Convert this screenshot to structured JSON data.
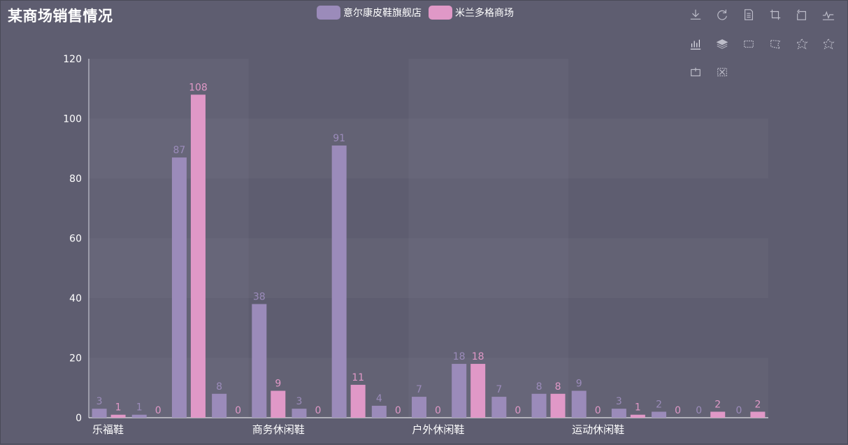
{
  "title": "某商场销售情况",
  "legend": [
    {
      "name": "意尔康皮鞋旗舰店",
      "color": "#9b8bba"
    },
    {
      "name": "米兰多格商场",
      "color": "#e098c7"
    }
  ],
  "toolbox": [
    "save-as-image-icon",
    "restore-icon",
    "data-view-icon",
    "zoom-icon",
    "zoom-back-icon",
    "line-chart-icon",
    "bar-chart-icon",
    "stack-icon",
    "rect-select-icon",
    "polygon-select-icon",
    "keep-select-icon",
    "clear-select-icon",
    "brush-icon",
    "clear-brush-icon"
  ],
  "chart_data": {
    "type": "bar",
    "title": "某商场销售情况",
    "xlabel": "",
    "ylabel": "",
    "ylim": [
      0,
      120
    ],
    "yticks": [
      0,
      20,
      40,
      60,
      80,
      100,
      120
    ],
    "categories": [
      "乐福鞋",
      "",
      "",
      "",
      "商务休闲鞋",
      "",
      "",
      "",
      "户外休闲鞋",
      "",
      "",
      "",
      "运动休闲鞋",
      "",
      "",
      "",
      ""
    ],
    "series": [
      {
        "name": "意尔康皮鞋旗舰店",
        "color": "#9b8bba",
        "values": [
          3,
          1,
          87,
          8,
          38,
          3,
          91,
          4,
          7,
          18,
          7,
          8,
          9,
          3,
          2,
          0,
          0
        ]
      },
      {
        "name": "米兰多格商场",
        "color": "#e098c7",
        "values": [
          1,
          0,
          108,
          0,
          9,
          0,
          11,
          0,
          0,
          18,
          0,
          8,
          0,
          1,
          0,
          2,
          2
        ]
      }
    ],
    "grid": true,
    "legend_position": "top-center"
  }
}
